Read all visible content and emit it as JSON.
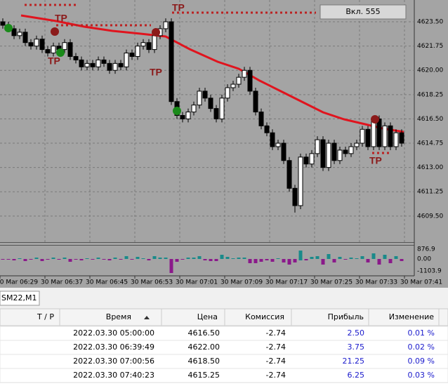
{
  "chart": {
    "type": "candlestick",
    "button": "Вкл. 555",
    "tp_labels": [
      "TP",
      "TP",
      "TP",
      "TP",
      "TP"
    ],
    "open": [
      4623.5,
      4623.25,
      4623.0,
      4622.5,
      4622.75,
      4622.0,
      4621.75,
      4622.25,
      4621.5,
      4621.25,
      4621.75,
      4621.5,
      4622.0,
      4621.0,
      4620.75,
      4620.25,
      4620.5,
      4620.25,
      4620.75,
      4620.5,
      4620.0,
      4620.5,
      4620.25,
      4621.25,
      4621.0,
      4621.75,
      4622.0,
      4621.5,
      4622.5,
      4623.0,
      4623.5,
      4617.75,
      4616.75,
      4616.5,
      4617.0,
      4617.5,
      4618.5,
      4618.0,
      4617.25,
      4616.5,
      4618.0,
      4618.75,
      4619.0,
      4619.5,
      4620.0,
      4618.5,
      4617.0,
      4616.0,
      4615.5,
      4614.5,
      4614.75,
      4613.5,
      4611.5,
      4610.25,
      4613.75,
      4613.25,
      4614.0,
      4615.0,
      4613.0,
      4614.75,
      4613.5,
      4614.25,
      4614.0,
      4614.5,
      4614.75,
      4615.75,
      4614.5,
      4616.5,
      4614.5,
      4616.0,
      4614.5,
      4615.5
    ],
    "high": [
      4623.75,
      4623.5,
      4623.25,
      4623.0,
      4623.0,
      4622.25,
      4622.5,
      4622.5,
      4621.75,
      4622.0,
      4622.0,
      4622.25,
      4622.25,
      4621.25,
      4621.0,
      4620.75,
      4620.75,
      4621.0,
      4621.0,
      4620.75,
      4620.75,
      4620.75,
      4621.5,
      4621.5,
      4622.0,
      4622.25,
      4622.25,
      4622.75,
      4623.25,
      4623.75,
      4623.75,
      4618.0,
      4617.0,
      4617.25,
      4617.75,
      4618.75,
      4618.75,
      4618.25,
      4617.5,
      4618.25,
      4619.0,
      4619.25,
      4619.75,
      4620.25,
      4620.25,
      4618.75,
      4617.25,
      4616.25,
      4615.75,
      4615.0,
      4615.0,
      4613.75,
      4611.75,
      4614.0,
      4614.0,
      4614.25,
      4615.25,
      4615.25,
      4615.0,
      4615.0,
      4614.5,
      4614.5,
      4614.75,
      4615.0,
      4616.0,
      4616.0,
      4616.75,
      4616.75,
      4616.25,
      4616.25,
      4615.75,
      4615.75
    ],
    "low": [
      4623.0,
      4622.75,
      4622.25,
      4622.25,
      4621.75,
      4621.5,
      4621.5,
      4621.25,
      4621.0,
      4621.0,
      4621.25,
      4621.25,
      4620.75,
      4620.5,
      4620.0,
      4620.0,
      4620.0,
      4620.0,
      4620.25,
      4619.75,
      4619.75,
      4620.0,
      4620.0,
      4620.75,
      4620.75,
      4621.5,
      4621.25,
      4621.25,
      4622.25,
      4622.75,
      4617.5,
      4616.5,
      4616.25,
      4616.25,
      4616.75,
      4617.25,
      4617.75,
      4617.0,
      4616.25,
      4616.25,
      4617.75,
      4618.5,
      4618.75,
      4619.25,
      4618.25,
      4616.75,
      4615.75,
      4615.25,
      4614.25,
      4614.25,
      4613.25,
      4611.25,
      4609.75,
      4610.0,
      4613.0,
      4613.0,
      4613.75,
      4612.75,
      4612.75,
      4613.25,
      4613.25,
      4613.75,
      4613.75,
      4614.25,
      4614.5,
      4614.25,
      4614.25,
      4614.25,
      4614.25,
      4614.25,
      4614.25,
      4614.5
    ],
    "close": [
      4623.25,
      4623.0,
      4622.5,
      4622.75,
      4622.0,
      4621.75,
      4622.25,
      4621.5,
      4621.25,
      4621.75,
      4621.5,
      4622.0,
      4621.0,
      4620.75,
      4620.25,
      4620.5,
      4620.25,
      4620.75,
      4620.5,
      4620.0,
      4620.5,
      4620.25,
      4621.25,
      4621.0,
      4621.75,
      4622.0,
      4621.5,
      4622.5,
      4623.0,
      4623.5,
      4617.75,
      4616.75,
      4616.5,
      4617.0,
      4617.5,
      4618.5,
      4618.0,
      4617.25,
      4616.5,
      4618.0,
      4618.75,
      4619.0,
      4619.5,
      4620.0,
      4618.5,
      4617.0,
      4616.0,
      4615.5,
      4614.5,
      4614.75,
      4613.5,
      4611.5,
      4610.25,
      4613.75,
      4613.25,
      4614.0,
      4615.0,
      4613.0,
      4614.75,
      4613.5,
      4614.25,
      4614.0,
      4614.5,
      4614.75,
      4615.75,
      4614.5,
      4616.5,
      4614.5,
      4616.0,
      4614.5,
      4615.5,
      4614.75
    ],
    "ylim": [
      4607.62,
      4625.07
    ],
    "yticks": [
      {
        "value": 4623.5,
        "label": "4623.50"
      },
      {
        "value": 4621.75,
        "label": "4621.75"
      },
      {
        "value": 4620.0,
        "label": "4620.00"
      },
      {
        "value": 4618.25,
        "label": "4618.25"
      },
      {
        "value": 4616.5,
        "label": "4616.50"
      },
      {
        "value": 4614.75,
        "label": "4614.75"
      },
      {
        "value": 4613.0,
        "label": "4613.00"
      },
      {
        "value": 4611.25,
        "label": "4611.25"
      },
      {
        "value": 4609.5,
        "label": "4609.50"
      }
    ],
    "x_labels": [
      "30 Mar 06:29",
      "30 Mar 06:37",
      "30 Mar 06:45",
      "30 Mar 06:53",
      "30 Mar 07:01",
      "30 Mar 07:09",
      "30 Mar 07:17",
      "30 Mar 07:25",
      "30 Mar 07:33",
      "30 Mar 07:41"
    ],
    "indicator_labels": [
      "876.9",
      "0.00",
      "-1103.9"
    ]
  },
  "tab": "SM22,M1",
  "table": {
    "headers": [
      "T / P",
      "Время",
      "Цена",
      "Комиссия",
      "Прибыль",
      "Изменение"
    ],
    "rows": [
      [
        "2022.03.30 05:00:00",
        "4616.50",
        "-2.74",
        "2.50",
        "0.01 %"
      ],
      [
        "2022.03.30 06:39:49",
        "4622.00",
        "-2.74",
        "3.75",
        "0.02 %"
      ],
      [
        "2022.03.30 07:00:56",
        "4618.50",
        "-2.74",
        "21.25",
        "0.09 %"
      ],
      [
        "2022.03.30 07:40:23",
        "4615.25",
        "-2.74",
        "6.25",
        "0.03 %"
      ]
    ]
  }
}
